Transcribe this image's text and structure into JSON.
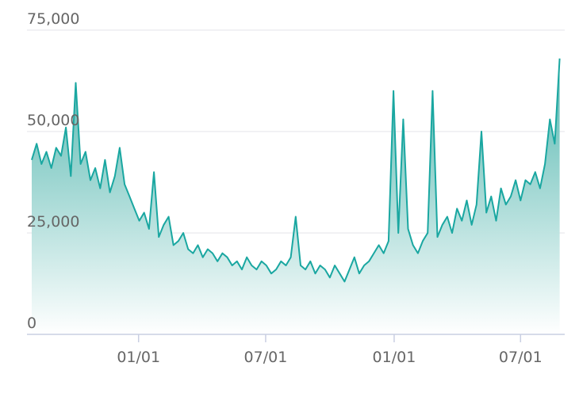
{
  "chart_data": {
    "type": "area",
    "title": "",
    "xlabel": "",
    "ylabel": "",
    "ylim": [
      0,
      75000
    ],
    "y_ticks": [
      {
        "value": 0,
        "label": "0"
      },
      {
        "value": 25000,
        "label": "25,000"
      },
      {
        "value": 50000,
        "label": "50,000"
      },
      {
        "value": 75000,
        "label": "75,000"
      }
    ],
    "x_range": [
      "2019-08-01",
      "2021-08-31"
    ],
    "x_ticks": [
      {
        "date": "2020-01-01",
        "label": "01/01"
      },
      {
        "date": "2020-07-01",
        "label": "07/01"
      },
      {
        "date": "2021-01-01",
        "label": "01/01"
      },
      {
        "date": "2021-07-01",
        "label": "07/01"
      }
    ],
    "grid": true,
    "legend": "none",
    "colors": {
      "line": "#1aa7a1",
      "fill_top": "#4bb3ab",
      "fill_bottom": "#ffffff",
      "grid": "#e3e3e8",
      "axis": "#c9cfe2",
      "tick_label": "#666666"
    },
    "series": [
      {
        "x": [
          "2019-08-01",
          "2019-08-08",
          "2019-08-15",
          "2019-08-22",
          "2019-08-29",
          "2019-09-05",
          "2019-09-12",
          "2019-09-19",
          "2019-09-26",
          "2019-10-03",
          "2019-10-10",
          "2019-10-17",
          "2019-10-24",
          "2019-10-31",
          "2019-11-07",
          "2019-11-14",
          "2019-11-21",
          "2019-11-28",
          "2019-12-05",
          "2019-12-12",
          "2019-12-19",
          "2019-12-26",
          "2020-01-02",
          "2020-01-09",
          "2020-01-16",
          "2020-01-23",
          "2020-01-30",
          "2020-02-06",
          "2020-02-13",
          "2020-02-20",
          "2020-02-27",
          "2020-03-05",
          "2020-03-12",
          "2020-03-19",
          "2020-03-26",
          "2020-04-02",
          "2020-04-09",
          "2020-04-16",
          "2020-04-23",
          "2020-04-30",
          "2020-05-07",
          "2020-05-14",
          "2020-05-21",
          "2020-05-28",
          "2020-06-04",
          "2020-06-11",
          "2020-06-18",
          "2020-06-25",
          "2020-07-02",
          "2020-07-09",
          "2020-07-16",
          "2020-07-23",
          "2020-07-30",
          "2020-08-06",
          "2020-08-13",
          "2020-08-20",
          "2020-08-27",
          "2020-09-03",
          "2020-09-10",
          "2020-09-17",
          "2020-09-24",
          "2020-10-01",
          "2020-10-08",
          "2020-10-15",
          "2020-10-22",
          "2020-10-29",
          "2020-11-05",
          "2020-11-12",
          "2020-11-19",
          "2020-11-26",
          "2020-12-03",
          "2020-12-10",
          "2020-12-17",
          "2020-12-24",
          "2020-12-31",
          "2021-01-07",
          "2021-01-14",
          "2021-01-21",
          "2021-01-28",
          "2021-02-04",
          "2021-02-11",
          "2021-02-18",
          "2021-02-25",
          "2021-03-04",
          "2021-03-11",
          "2021-03-18",
          "2021-03-25",
          "2021-04-01",
          "2021-04-08",
          "2021-04-15",
          "2021-04-22",
          "2021-04-29",
          "2021-05-06",
          "2021-05-13",
          "2021-05-20",
          "2021-05-27",
          "2021-06-03",
          "2021-06-10",
          "2021-06-17",
          "2021-06-24",
          "2021-07-01",
          "2021-07-08",
          "2021-07-15",
          "2021-07-22",
          "2021-07-29",
          "2021-08-05",
          "2021-08-12",
          "2021-08-19",
          "2021-08-26"
        ],
        "values": [
          43000,
          47000,
          42000,
          45000,
          41000,
          46000,
          44000,
          51000,
          39000,
          62000,
          42000,
          45000,
          38000,
          41000,
          36000,
          43000,
          35000,
          39000,
          46000,
          37000,
          34000,
          31000,
          28000,
          30000,
          26000,
          40000,
          24000,
          27000,
          29000,
          22000,
          23000,
          25000,
          21000,
          20000,
          22000,
          19000,
          21000,
          20000,
          18000,
          20000,
          19000,
          17000,
          18000,
          16000,
          19000,
          17000,
          16000,
          18000,
          17000,
          15000,
          16000,
          18000,
          17000,
          19000,
          29000,
          17000,
          16000,
          18000,
          15000,
          17000,
          16000,
          14000,
          17000,
          15000,
          13000,
          16000,
          19000,
          15000,
          17000,
          18000,
          20000,
          22000,
          20000,
          23000,
          60000,
          25000,
          53000,
          26000,
          22000,
          20000,
          23000,
          25000,
          60000,
          24000,
          27000,
          29000,
          25000,
          31000,
          28000,
          33000,
          27000,
          32000,
          50000,
          30000,
          34000,
          28000,
          36000,
          32000,
          34000,
          38000,
          33000,
          38000,
          37000,
          40000,
          36000,
          42000,
          53000,
          47000,
          68000
        ]
      }
    ]
  }
}
